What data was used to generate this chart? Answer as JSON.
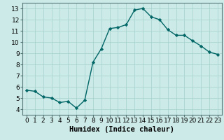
{
  "x": [
    0,
    1,
    2,
    3,
    4,
    5,
    6,
    7,
    8,
    9,
    10,
    11,
    12,
    13,
    14,
    15,
    16,
    17,
    18,
    19,
    20,
    21,
    22,
    23
  ],
  "y": [
    5.7,
    5.6,
    5.1,
    5.0,
    4.6,
    4.7,
    4.1,
    4.8,
    8.2,
    9.4,
    11.2,
    11.3,
    11.55,
    12.85,
    13.0,
    12.25,
    12.0,
    11.1,
    10.6,
    10.6,
    10.1,
    9.65,
    9.1,
    8.9
  ],
  "line_color": "#006666",
  "marker": "D",
  "marker_size": 2.2,
  "linewidth": 1.0,
  "bg_color": "#cceae7",
  "grid_color": "#aad4d0",
  "xlabel": "Humidex (Indice chaleur)",
  "xlabel_fontsize": 7.5,
  "xlim": [
    -0.5,
    23.5
  ],
  "ylim": [
    3.5,
    13.5
  ],
  "yticks": [
    4,
    5,
    6,
    7,
    8,
    9,
    10,
    11,
    12,
    13
  ],
  "xticks": [
    0,
    1,
    2,
    3,
    4,
    5,
    6,
    7,
    8,
    9,
    10,
    11,
    12,
    13,
    14,
    15,
    16,
    17,
    18,
    19,
    20,
    21,
    22,
    23
  ],
  "tick_fontsize": 6.5
}
